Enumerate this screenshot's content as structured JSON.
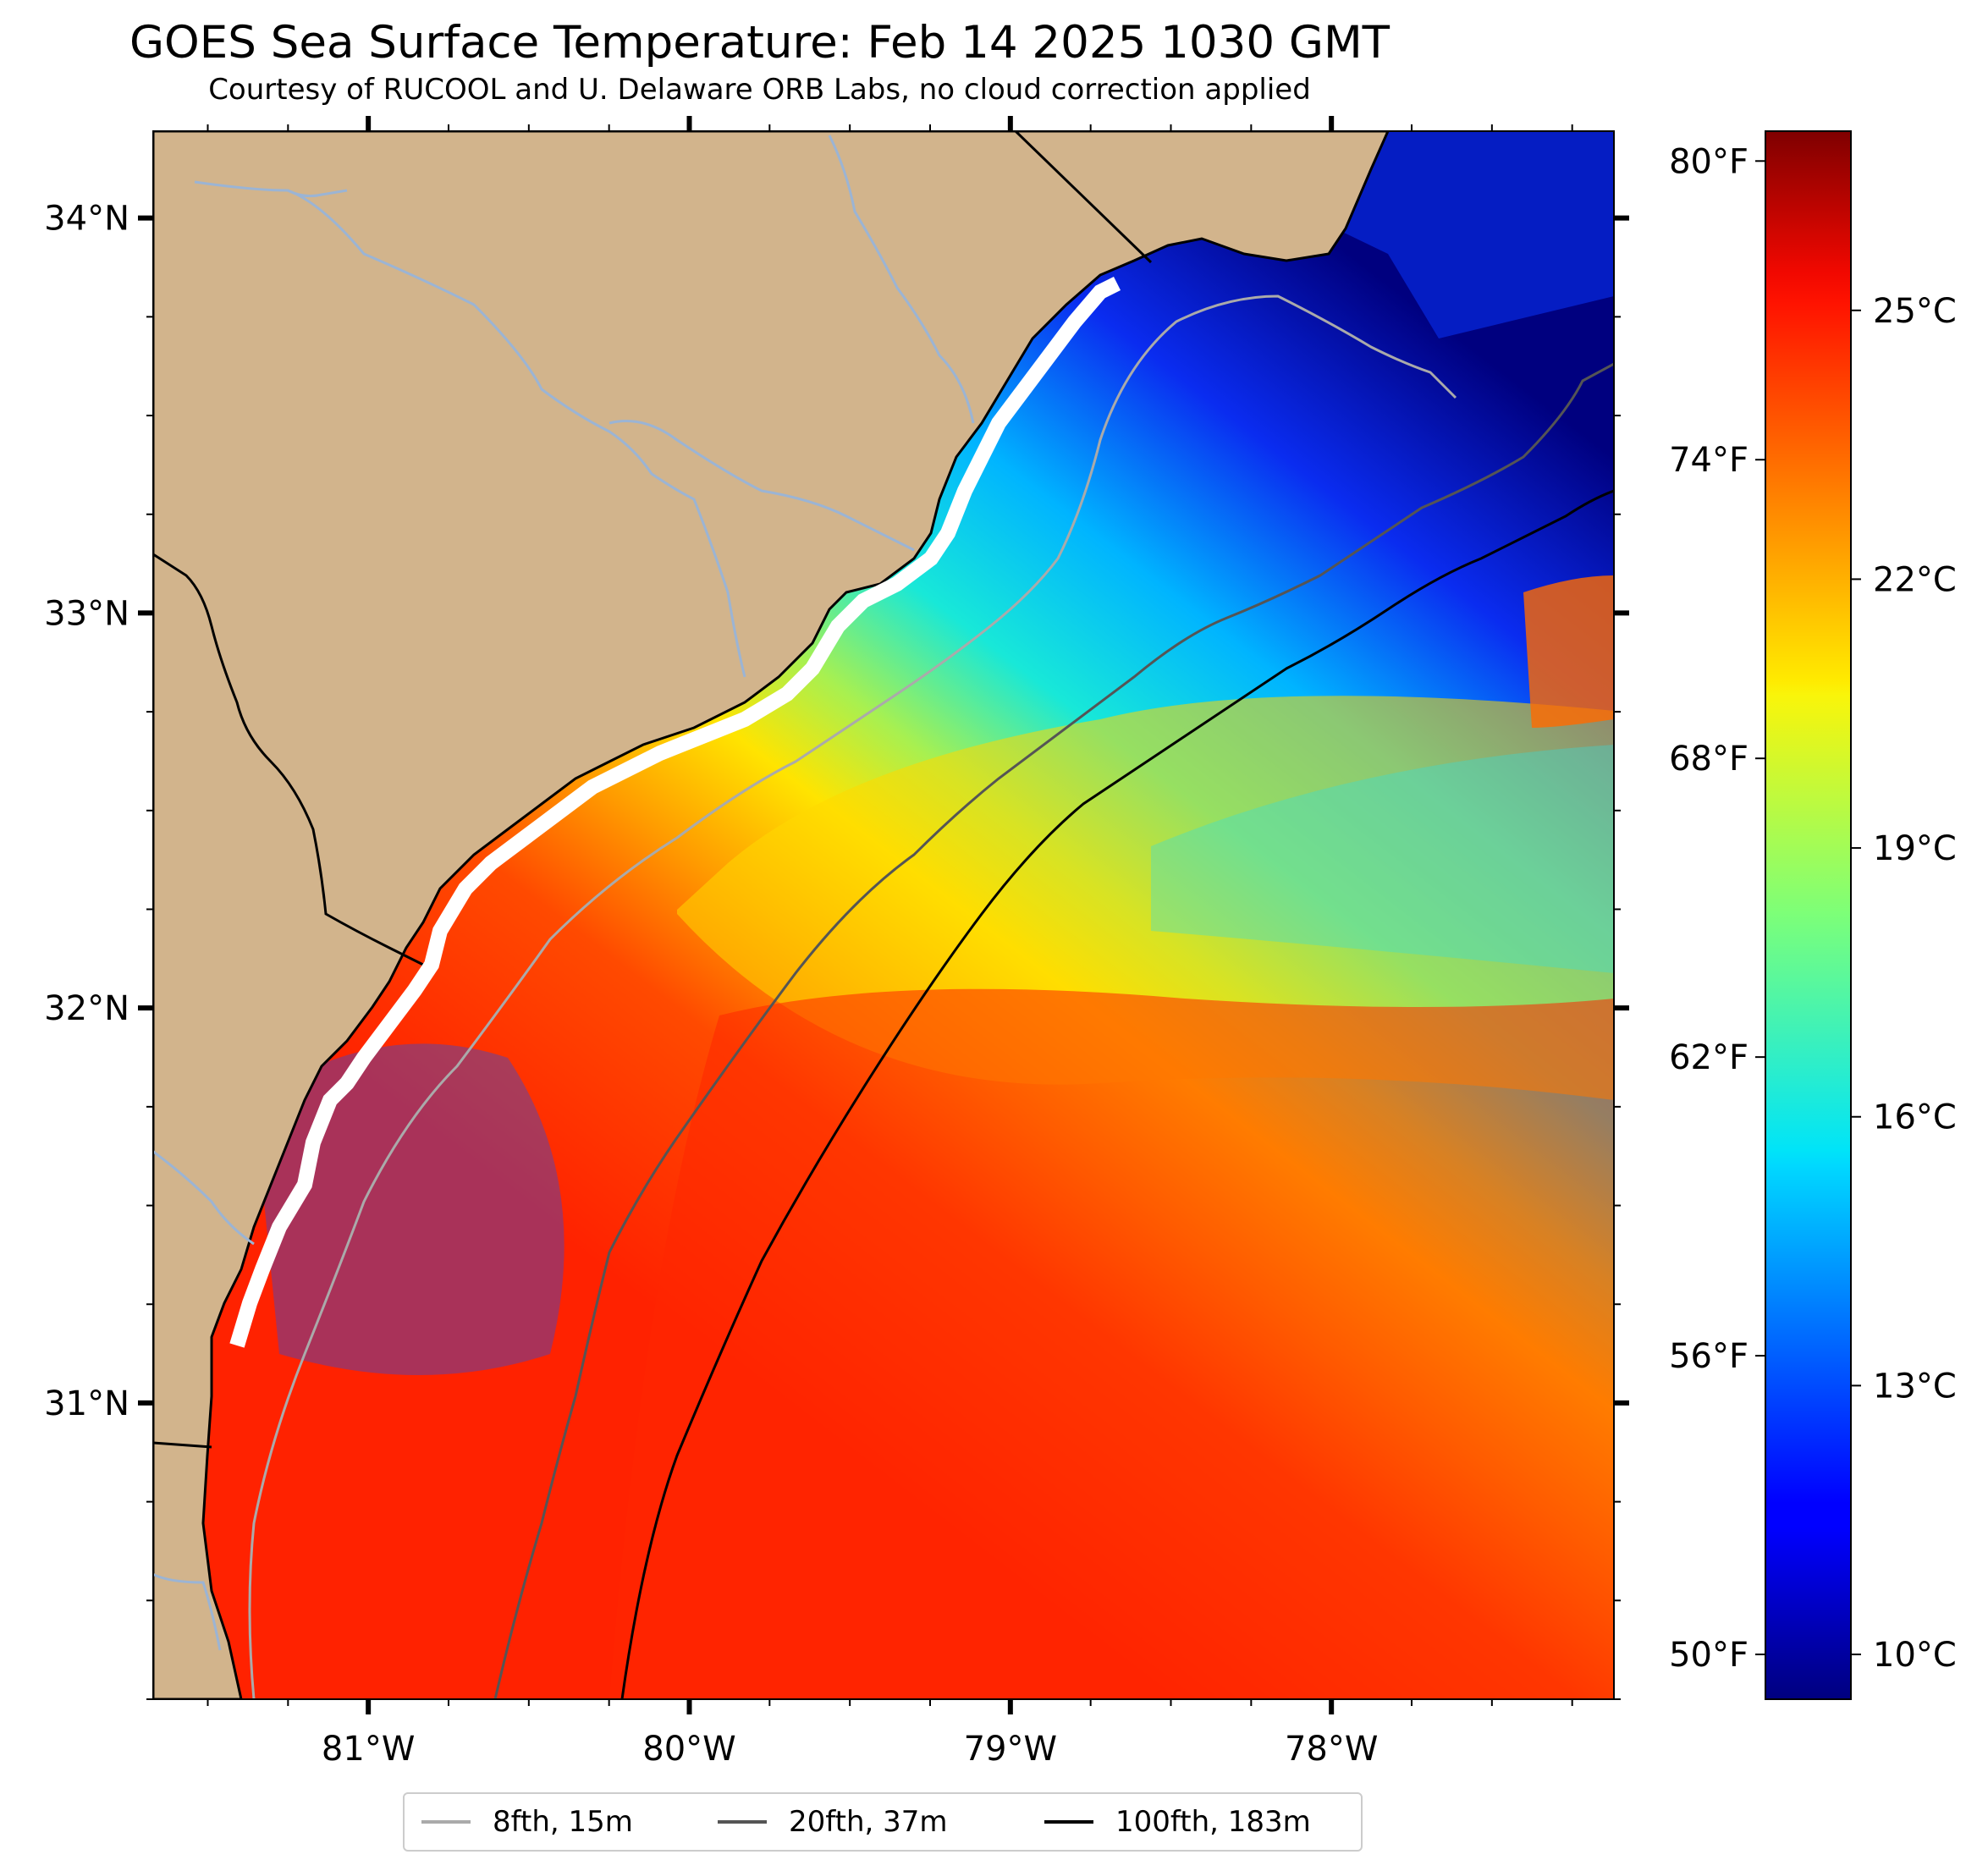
{
  "title": "GOES Sea Surface Temperature: Feb 14 2025 1030 GMT",
  "subtitle": "Courtesy of RUCOOL and U. Delaware ORB Labs, no cloud correction applied",
  "map": {
    "lon_range": [
      -81.67,
      -77.12
    ],
    "lat_range": [
      30.25,
      34.22
    ],
    "lon_ticks": [
      {
        "value": -81,
        "label": "81°W"
      },
      {
        "value": -80,
        "label": "80°W"
      },
      {
        "value": -79,
        "label": "79°W"
      },
      {
        "value": -78,
        "label": "78°W"
      }
    ],
    "lat_ticks": [
      {
        "value": 34,
        "label": "34°N"
      },
      {
        "value": 33,
        "label": "33°N"
      },
      {
        "value": 32,
        "label": "32°N"
      },
      {
        "value": 31,
        "label": "31°N"
      }
    ],
    "colors": {
      "land": "#d2b48c",
      "rivers": "#9bb4d4",
      "ocean_cold": "#00008b",
      "ocean_warm": "#ff2000"
    }
  },
  "colorbar": {
    "colormap": "jet",
    "range_c": [
      9.5,
      27
    ],
    "celsius_ticks": [
      {
        "value": 25,
        "label": "25°C"
      },
      {
        "value": 22,
        "label": "22°C"
      },
      {
        "value": 19,
        "label": "19°C"
      },
      {
        "value": 16,
        "label": "16°C"
      },
      {
        "value": 13,
        "label": "13°C"
      },
      {
        "value": 10,
        "label": "10°C"
      }
    ],
    "fahrenheit_ticks": [
      {
        "value": 80,
        "label": "80°F"
      },
      {
        "value": 74,
        "label": "74°F"
      },
      {
        "value": 68,
        "label": "68°F"
      },
      {
        "value": 62,
        "label": "62°F"
      },
      {
        "value": 56,
        "label": "56°F"
      },
      {
        "value": 50,
        "label": "50°F"
      }
    ]
  },
  "legend": {
    "items": [
      {
        "label": "8fth, 15m",
        "color": "#aaaaaa"
      },
      {
        "label": "20fth, 37m",
        "color": "#555555"
      },
      {
        "label": "100fth, 183m",
        "color": "#000000"
      }
    ]
  }
}
